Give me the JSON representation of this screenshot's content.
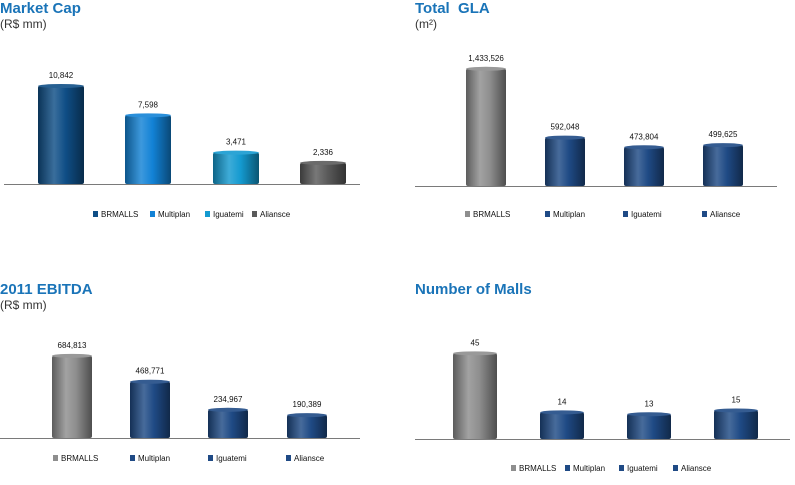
{
  "colors": {
    "title": "#1a74b8",
    "dark_blue": "#0f4e86",
    "blue": "#1282d6",
    "cyan": "#149ad0",
    "gray": "#5a5a5a",
    "light_gray": "#8e8e8e",
    "navy": "#1f4a85"
  },
  "chart_data": [
    {
      "type": "bar",
      "title": "Market Cap",
      "subtitle": "(R$ mm)",
      "categories": [
        "BRMALLS",
        "Multiplan",
        "Iguatemi",
        "Aliansce"
      ],
      "values": [
        10842,
        7598,
        3471,
        2336
      ],
      "value_labels": [
        "10,842",
        "7,598",
        "3,471",
        "2,336"
      ],
      "bar_colors": [
        "#0f4e86",
        "#1282d6",
        "#149ad0",
        "#5a5a5a"
      ],
      "ylim": [
        0,
        12500
      ],
      "legend": "bottom",
      "grid": false
    },
    {
      "type": "bar",
      "title": "Total  GLA",
      "subtitle": "(m²)",
      "categories": [
        "BRMALLS",
        "Multiplan",
        "Iguatemi",
        "Aliansce"
      ],
      "values": [
        1433526,
        592048,
        473804,
        499625
      ],
      "value_labels": [
        "1,433,526",
        "592,048",
        "473,804",
        "499,625"
      ],
      "bar_colors": [
        "#8e8e8e",
        "#1f4a85",
        "#1f4a85",
        "#1f4a85"
      ],
      "ylim": [
        0,
        1700000
      ],
      "legend": "bottom",
      "grid": false
    },
    {
      "type": "bar",
      "title": "2011 EBITDA",
      "subtitle": "(R$ mm)",
      "categories": [
        "BRMALLS",
        "Multiplan",
        "Iguatemi",
        "Aliansce"
      ],
      "values": [
        684813,
        468771,
        234967,
        190389
      ],
      "value_labels": [
        "684,813",
        "468,771",
        "234,967",
        "190,389"
      ],
      "bar_colors": [
        "#8e8e8e",
        "#1f4a85",
        "#1f4a85",
        "#1f4a85"
      ],
      "ylim": [
        0,
        800000
      ],
      "legend": "bottom",
      "grid": false
    },
    {
      "type": "bar",
      "title": "Number of Malls",
      "subtitle": "",
      "categories": [
        "BRMALLS",
        "Multiplan",
        "Iguatemi",
        "Aliansce"
      ],
      "values": [
        45,
        14,
        13,
        15
      ],
      "value_labels": [
        "45",
        "14",
        "13",
        "15"
      ],
      "bar_colors": [
        "#8e8e8e",
        "#1f4a85",
        "#1f4a85",
        "#1f4a85"
      ],
      "ylim": [
        0,
        52
      ],
      "legend": "bottom",
      "grid": false
    }
  ]
}
